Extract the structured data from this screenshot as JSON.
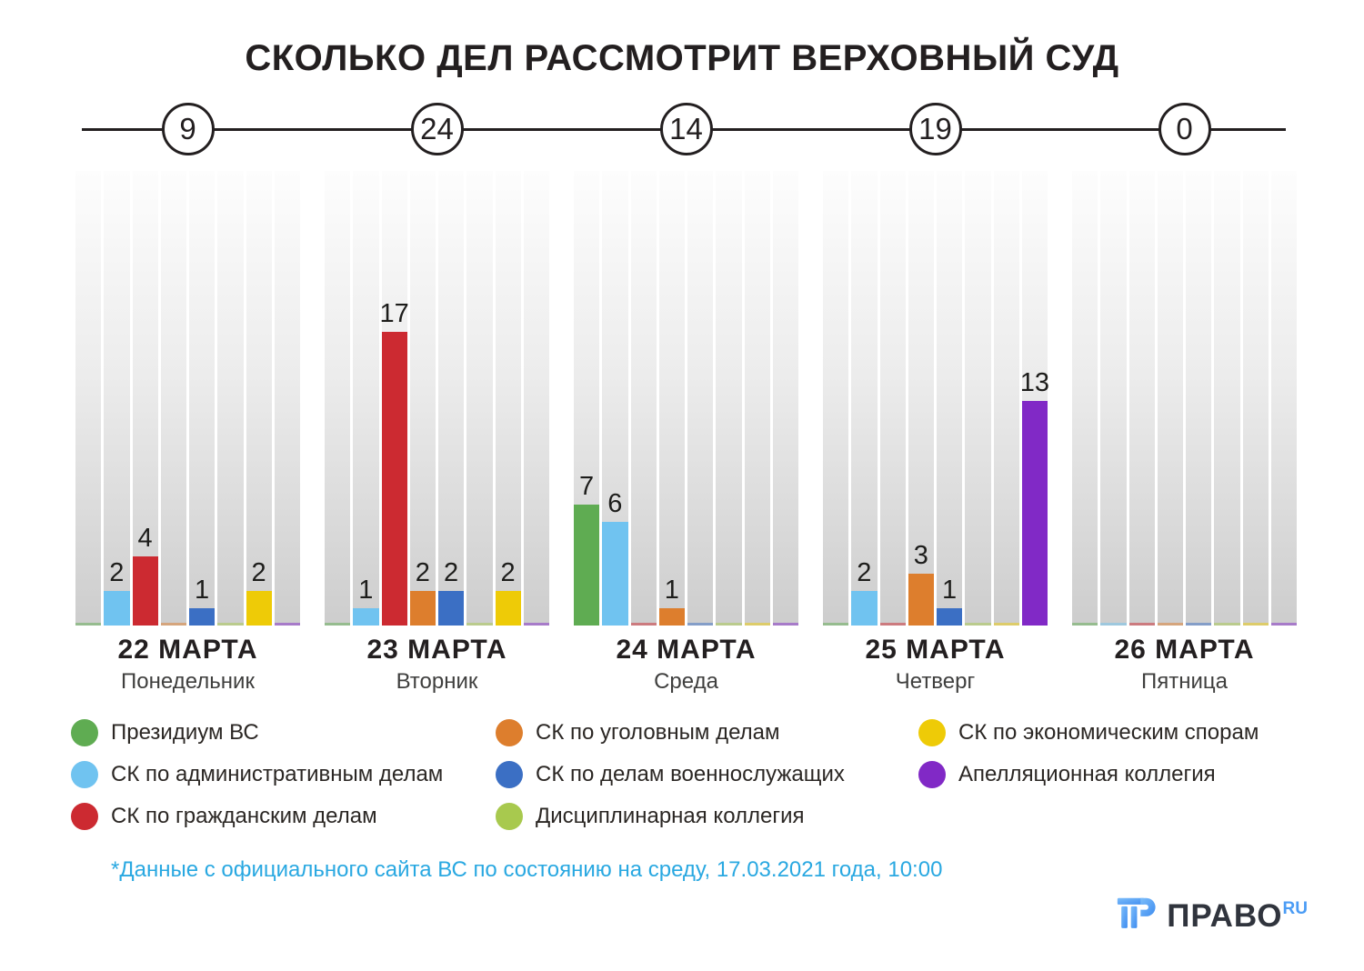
{
  "title": "СКОЛЬКО ДЕЛ РАССМОТРИТ ВЕРХОВНЫЙ СУД",
  "chart_data": {
    "type": "bar",
    "title": "СКОЛЬКО ДЕЛ РАССМОТРИТ ВЕРХОВНЫЙ СУД",
    "grouping": "grouped bars per day, one bar per court collegium",
    "value_labels_shown": true,
    "grid": false,
    "ylim": [
      0,
      26
    ],
    "categories": [
      {
        "date": "22 МАРТА",
        "weekday": "Понедельник"
      },
      {
        "date": "23 МАРТА",
        "weekday": "Вторник"
      },
      {
        "date": "24 МАРТА",
        "weekday": "Среда"
      },
      {
        "date": "25 МАРТА",
        "weekday": "Четверг"
      },
      {
        "date": "26 МАРТА",
        "weekday": "Пятница"
      }
    ],
    "totals": [
      9,
      24,
      14,
      19,
      0
    ],
    "series": [
      {
        "name": "Президиум ВС",
        "color": "#5fac52",
        "values": [
          0,
          0,
          7,
          0,
          0
        ]
      },
      {
        "name": "СК по административным делам",
        "color": "#70c3f0",
        "values": [
          2,
          1,
          6,
          2,
          0
        ]
      },
      {
        "name": "СК по гражданским делам",
        "color": "#cc2a31",
        "values": [
          4,
          17,
          0,
          0,
          0
        ]
      },
      {
        "name": "СК по уголовным делам",
        "color": "#dd7e2d",
        "values": [
          0,
          2,
          1,
          3,
          0
        ]
      },
      {
        "name": "СК по делам военнослужащих",
        "color": "#3b6fc4",
        "values": [
          1,
          2,
          0,
          1,
          0
        ]
      },
      {
        "name": "Дисциплинарная коллегия",
        "color": "#a8c94e",
        "values": [
          0,
          0,
          0,
          0,
          0
        ]
      },
      {
        "name": "СК по экономическим спорам",
        "color": "#eecb07",
        "values": [
          2,
          2,
          0,
          0,
          0
        ]
      },
      {
        "name": "Апелляционная коллегия",
        "color": "#8129c6",
        "values": [
          0,
          0,
          0,
          13,
          0
        ]
      }
    ],
    "legend_position": "bottom",
    "legend_columns": [
      [
        0,
        1,
        2
      ],
      [
        3,
        4,
        5
      ],
      [
        6,
        7
      ]
    ]
  },
  "footnote": "*Данные с официального сайта ВС по состоянию на среду, 17.03.2021 года, 10:00",
  "logo": {
    "brand": "ПРАВО",
    "tld": "RU"
  }
}
